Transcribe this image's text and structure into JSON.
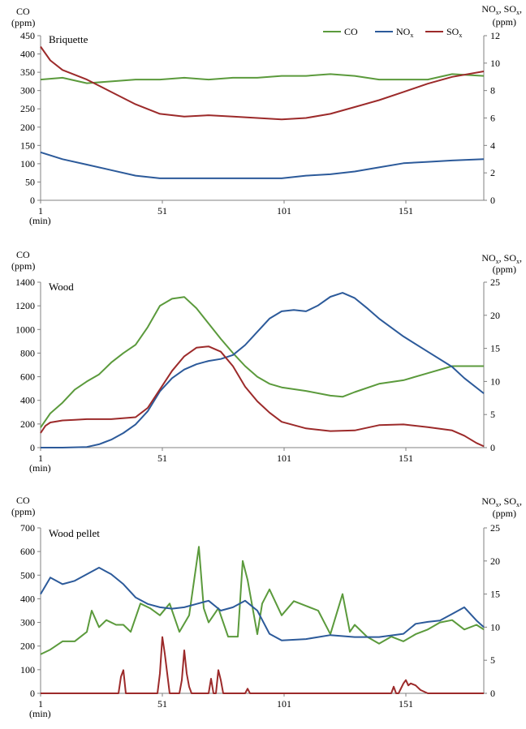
{
  "figure": {
    "legend": [
      {
        "label": "CO",
        "color": "#5b9a3c"
      },
      {
        "label": "NOx",
        "color": "#2c5a9a"
      },
      {
        "label": "SOx",
        "color": "#9c2a2a"
      }
    ],
    "x_ticks": [
      "1",
      "51",
      "101",
      "151"
    ],
    "x_unit": "(min)"
  },
  "chart_data": [
    {
      "type": "line",
      "title": "Briquette",
      "ylabel_left": "CO (ppm)",
      "ylabel_right": "NOx, SOx, (ppm)",
      "xlabel": "(min)",
      "x_range": [
        1,
        183
      ],
      "ylim_left": [
        0,
        450
      ],
      "ylim_right": [
        0,
        12
      ],
      "yticks_left": [
        "0",
        "50",
        "100",
        "150",
        "200",
        "250",
        "300",
        "350",
        "400",
        "450"
      ],
      "yticks_right": [
        "0",
        "2",
        "4",
        "6",
        "8",
        "10",
        "12"
      ],
      "series": [
        {
          "name": "CO",
          "axis": "left",
          "color": "#5b9a3c",
          "x": [
            1,
            10,
            20,
            30,
            40,
            50,
            60,
            70,
            80,
            90,
            100,
            110,
            120,
            130,
            140,
            150,
            160,
            170,
            183
          ],
          "y": [
            330,
            335,
            320,
            325,
            330,
            330,
            335,
            330,
            335,
            335,
            340,
            340,
            345,
            340,
            330,
            330,
            330,
            345,
            340
          ]
        },
        {
          "name": "NOx",
          "axis": "right",
          "color": "#2c5a9a",
          "x": [
            1,
            10,
            20,
            30,
            40,
            50,
            60,
            70,
            80,
            90,
            100,
            110,
            120,
            130,
            140,
            150,
            160,
            170,
            183
          ],
          "y": [
            3.5,
            3.0,
            2.6,
            2.2,
            1.8,
            1.6,
            1.6,
            1.6,
            1.6,
            1.6,
            1.6,
            1.8,
            1.9,
            2.1,
            2.4,
            2.7,
            2.8,
            2.9,
            3.0
          ]
        },
        {
          "name": "SOx",
          "axis": "right",
          "color": "#9c2a2a",
          "x": [
            1,
            5,
            10,
            20,
            30,
            40,
            50,
            60,
            70,
            80,
            90,
            100,
            110,
            120,
            130,
            140,
            150,
            160,
            170,
            183
          ],
          "y": [
            11.2,
            10.2,
            9.5,
            8.8,
            7.9,
            7.0,
            6.3,
            6.1,
            6.2,
            6.1,
            6.0,
            5.9,
            6.0,
            6.3,
            6.8,
            7.3,
            7.9,
            8.5,
            9.0,
            9.4
          ]
        }
      ]
    },
    {
      "type": "line",
      "title": "Wood",
      "ylabel_left": "CO (ppm)",
      "ylabel_right": "NOx, SOx, (ppm)",
      "xlabel": "(min)",
      "x_range": [
        1,
        183
      ],
      "ylim_left": [
        0,
        1400
      ],
      "ylim_right": [
        0,
        25
      ],
      "yticks_left": [
        "0",
        "200",
        "400",
        "600",
        "800",
        "1000",
        "1200",
        "1400"
      ],
      "yticks_right": [
        "0",
        "5",
        "10",
        "15",
        "20",
        "25"
      ],
      "series": [
        {
          "name": "CO",
          "axis": "left",
          "color": "#5b9a3c",
          "x": [
            1,
            5,
            10,
            15,
            20,
            25,
            30,
            35,
            40,
            45,
            50,
            55,
            60,
            65,
            70,
            75,
            80,
            85,
            90,
            95,
            100,
            110,
            120,
            125,
            130,
            140,
            150,
            160,
            170,
            183
          ],
          "y": [
            170,
            290,
            380,
            490,
            560,
            620,
            720,
            800,
            870,
            1020,
            1200,
            1260,
            1275,
            1180,
            1050,
            920,
            800,
            690,
            600,
            540,
            510,
            480,
            440,
            430,
            470,
            540,
            570,
            630,
            690,
            690
          ]
        },
        {
          "name": "NOx",
          "axis": "right",
          "color": "#2c5a9a",
          "x": [
            1,
            10,
            20,
            25,
            30,
            35,
            40,
            45,
            50,
            55,
            60,
            65,
            70,
            75,
            80,
            85,
            90,
            95,
            100,
            105,
            110,
            115,
            120,
            125,
            130,
            135,
            140,
            150,
            160,
            170,
            175,
            183
          ],
          "y": [
            0,
            0,
            0.1,
            0.5,
            1.2,
            2.2,
            3.5,
            5.5,
            8.5,
            10.5,
            11.8,
            12.6,
            13.1,
            13.4,
            14,
            15.5,
            17.5,
            19.5,
            20.6,
            20.8,
            20.6,
            21.5,
            22.8,
            23.4,
            22.6,
            21.1,
            19.5,
            16.8,
            14.5,
            12.2,
            10.5,
            8.2
          ]
        },
        {
          "name": "SOx",
          "axis": "right",
          "color": "#9c2a2a",
          "x": [
            1,
            3,
            5,
            10,
            15,
            20,
            30,
            40,
            45,
            50,
            55,
            60,
            65,
            70,
            75,
            80,
            85,
            90,
            95,
            100,
            110,
            120,
            130,
            140,
            150,
            160,
            170,
            175,
            180,
            183
          ],
          "y": [
            2.2,
            3.3,
            3.8,
            4.1,
            4.2,
            4.3,
            4.3,
            4.6,
            6,
            8.8,
            11.6,
            13.8,
            15.1,
            15.3,
            14.5,
            12.3,
            9.2,
            7,
            5.3,
            3.9,
            2.9,
            2.5,
            2.6,
            3.4,
            3.5,
            3.1,
            2.6,
            1.8,
            0.7,
            0.2
          ]
        }
      ]
    },
    {
      "type": "line",
      "title": "Wood pellet",
      "ylabel_left": "CO (ppm)",
      "ylabel_right": "NOx, SOx, (ppm)",
      "xlabel": "(min)",
      "x_range": [
        1,
        183
      ],
      "ylim_left": [
        0,
        700
      ],
      "ylim_right": [
        0,
        25
      ],
      "yticks_left": [
        "0",
        "100",
        "200",
        "300",
        "400",
        "500",
        "600",
        "700"
      ],
      "yticks_right": [
        "0",
        "5",
        "10",
        "15",
        "20",
        "25"
      ],
      "series": [
        {
          "name": "CO",
          "axis": "left",
          "color": "#5b9a3c",
          "x": [
            1,
            5,
            10,
            15,
            20,
            22,
            25,
            28,
            32,
            35,
            38,
            42,
            46,
            50,
            54,
            58,
            62,
            66,
            68,
            70,
            74,
            78,
            82,
            84,
            86,
            90,
            92,
            95,
            100,
            105,
            110,
            115,
            120,
            125,
            128,
            130,
            135,
            140,
            145,
            150,
            155,
            160,
            165,
            170,
            175,
            180,
            183
          ],
          "y": [
            165,
            185,
            220,
            220,
            260,
            350,
            280,
            310,
            290,
            290,
            260,
            380,
            360,
            330,
            380,
            260,
            330,
            620,
            360,
            300,
            360,
            240,
            240,
            560,
            480,
            250,
            380,
            440,
            330,
            390,
            370,
            350,
            250,
            420,
            260,
            290,
            240,
            210,
            240,
            220,
            250,
            270,
            300,
            310,
            270,
            290,
            270
          ]
        },
        {
          "name": "NOx",
          "axis": "right",
          "color": "#2c5a9a",
          "x": [
            1,
            5,
            10,
            15,
            20,
            25,
            30,
            35,
            40,
            45,
            50,
            55,
            60,
            65,
            70,
            75,
            80,
            85,
            90,
            95,
            100,
            110,
            120,
            130,
            140,
            150,
            155,
            160,
            165,
            170,
            175,
            180,
            183
          ],
          "y": [
            15,
            17.5,
            16.5,
            17,
            18,
            19,
            18,
            16.5,
            14.5,
            13.5,
            13,
            12.8,
            13,
            13.5,
            14,
            12.5,
            13,
            14,
            12.5,
            9,
            8,
            8.2,
            8.8,
            8.5,
            8.5,
            9,
            10.5,
            10.8,
            11,
            12,
            13,
            11,
            10
          ]
        },
        {
          "name": "SOx",
          "axis": "right",
          "color": "#9c2a2a",
          "x": [
            1,
            33,
            34,
            35,
            36,
            49,
            50,
            51,
            52,
            53,
            54,
            58,
            59,
            60,
            61,
            62,
            63,
            70,
            71,
            72,
            73,
            74,
            75,
            76,
            77,
            85,
            86,
            87,
            145,
            146,
            147,
            148,
            150,
            151,
            152,
            153,
            155,
            157,
            160,
            183
          ],
          "y": [
            0,
            0,
            2.5,
            3.5,
            0,
            0,
            3,
            8.5,
            6,
            3,
            0,
            0,
            2,
            6.5,
            3,
            1,
            0,
            0,
            2.2,
            0,
            0,
            3.5,
            2,
            0,
            0,
            0,
            0.7,
            0,
            0,
            1,
            0,
            0,
            1.5,
            2,
            1.2,
            1.5,
            1.2,
            0.5,
            0,
            0
          ]
        }
      ]
    }
  ]
}
